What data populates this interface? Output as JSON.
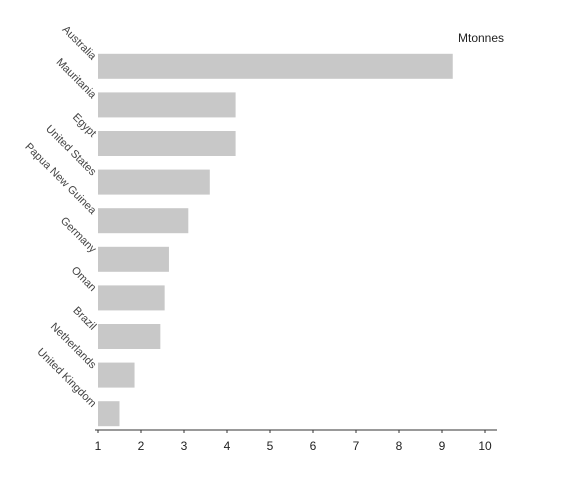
{
  "chart_data": {
    "type": "hbar",
    "x_label": "Mtonnes",
    "categories": [
      "Australia",
      "Mauritania",
      "Egypt",
      "United States",
      "Papua New Guinea",
      "Germany",
      "Oman",
      "Brazil",
      "Netherlands",
      "United Kingdom"
    ],
    "values": [
      9.25,
      4.2,
      4.2,
      3.6,
      3.1,
      2.65,
      2.55,
      2.45,
      1.85,
      1.5
    ],
    "color": "#c8c8c8",
    "xlim": [
      1,
      10
    ],
    "xticks": [
      1,
      2,
      3,
      4,
      5,
      6,
      7,
      8,
      9,
      10
    ]
  }
}
